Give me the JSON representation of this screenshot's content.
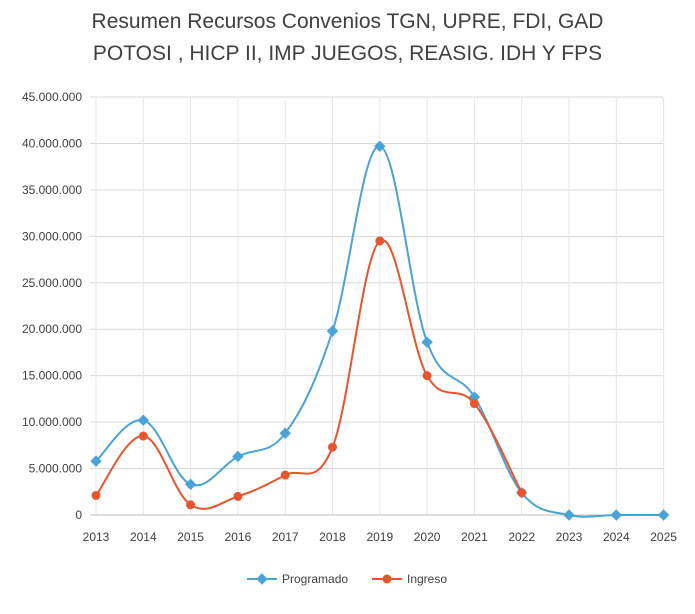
{
  "chart_data": {
    "type": "line",
    "title": [
      "Resumen Recursos Convenios TGN, UPRE, FDI, GAD",
      "POTOSI , HICP II, IMP JUEGOS, REASIG. IDH Y FPS"
    ],
    "xlabel": "",
    "ylabel": "",
    "categories": [
      "2013",
      "2014",
      "2015",
      "2016",
      "2017",
      "2018",
      "2019",
      "2020",
      "2021",
      "2022",
      "2023",
      "2024",
      "2025"
    ],
    "ylim": [
      0,
      45000000
    ],
    "yticks": [
      0,
      5000000,
      10000000,
      15000000,
      20000000,
      25000000,
      30000000,
      35000000,
      40000000,
      45000000
    ],
    "ytick_labels": [
      "0",
      "5.000.000",
      "10.000.000",
      "15.000.000",
      "20.000.000",
      "25.000.000",
      "30.000.000",
      "35.000.000",
      "40.000.000",
      "45.000.000"
    ],
    "grid": true,
    "legend_position": "bottom",
    "series": [
      {
        "name": "Programado",
        "color": "#4aa3d8",
        "marker": "diamond",
        "values": [
          5800000,
          10200000,
          3300000,
          6300000,
          8800000,
          19800000,
          39700000,
          18600000,
          12700000,
          2400000,
          0,
          0,
          0
        ]
      },
      {
        "name": "Ingreso",
        "color": "#e8542c",
        "marker": "circle",
        "values": [
          2100000,
          8500000,
          1100000,
          2000000,
          4300000,
          7300000,
          29500000,
          15000000,
          12000000,
          2400000,
          null,
          null,
          null
        ]
      }
    ]
  }
}
